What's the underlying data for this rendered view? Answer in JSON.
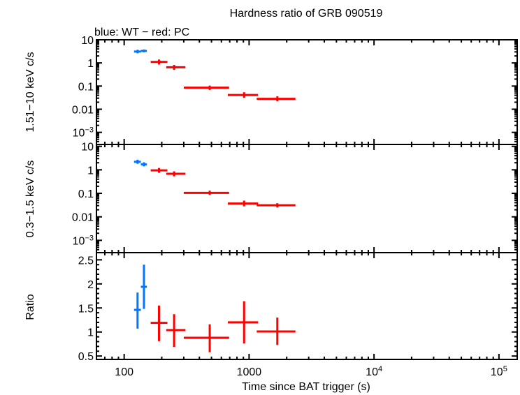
{
  "chart_data": [
    {
      "type": "scatter",
      "title": "Hardness ratio of GRB 090519",
      "subtitle": "blue: WT − red: PC",
      "ylabel": "1.51−10 keV c/s",
      "xlabel": "Time since BAT trigger (s)",
      "xscale": "log",
      "yscale": "log",
      "xlim": [
        60,
        140000
      ],
      "ylim": [
        0.0003,
        10
      ],
      "yticks": [
        "10",
        "1",
        "0.1",
        "0.01",
        "10−3"
      ],
      "series": [
        {
          "color": "#0077ff",
          "points": [
            {
              "x": 128,
              "xlo": 120,
              "xhi": 136,
              "y": 3.1,
              "ylo": 2.6,
              "yhi": 3.7
            },
            {
              "x": 144,
              "xlo": 136,
              "xhi": 152,
              "y": 3.3,
              "ylo": 2.9,
              "yhi": 3.8
            }
          ]
        },
        {
          "color": "#ff0000",
          "points": [
            {
              "x": 190,
              "xlo": 163,
              "xhi": 222,
              "y": 1.1,
              "ylo": 0.85,
              "yhi": 1.4
            },
            {
              "x": 251,
              "xlo": 217,
              "xhi": 309,
              "y": 0.65,
              "ylo": 0.5,
              "yhi": 0.82
            },
            {
              "x": 484,
              "xlo": 300,
              "xhi": 692,
              "y": 0.085,
              "ylo": 0.068,
              "yhi": 0.105
            },
            {
              "x": 912,
              "xlo": 676,
              "xhi": 1180,
              "y": 0.041,
              "ylo": 0.031,
              "yhi": 0.054
            },
            {
              "x": 1683,
              "xlo": 1150,
              "xhi": 2350,
              "y": 0.028,
              "ylo": 0.022,
              "yhi": 0.036
            }
          ]
        }
      ]
    },
    {
      "type": "scatter",
      "ylabel": "0.3−1.5 keV c/s",
      "xscale": "log",
      "yscale": "log",
      "xlim": [
        60,
        140000
      ],
      "ylim": [
        0.0003,
        12
      ],
      "yticks": [
        "10",
        "1",
        "0.1",
        "0.01",
        "10−3"
      ],
      "series": [
        {
          "color": "#0077ff",
          "points": [
            {
              "x": 128,
              "xlo": 120,
              "xhi": 136,
              "y": 2.2,
              "ylo": 1.8,
              "yhi": 2.7
            },
            {
              "x": 144,
              "xlo": 136,
              "xhi": 152,
              "y": 1.7,
              "ylo": 1.4,
              "yhi": 2.1
            }
          ]
        },
        {
          "color": "#ff0000",
          "points": [
            {
              "x": 190,
              "xlo": 163,
              "xhi": 222,
              "y": 0.95,
              "ylo": 0.75,
              "yhi": 1.2
            },
            {
              "x": 251,
              "xlo": 217,
              "xhi": 309,
              "y": 0.68,
              "ylo": 0.53,
              "yhi": 0.86
            },
            {
              "x": 484,
              "xlo": 300,
              "xhi": 692,
              "y": 0.105,
              "ylo": 0.085,
              "yhi": 0.13
            },
            {
              "x": 912,
              "xlo": 676,
              "xhi": 1180,
              "y": 0.037,
              "ylo": 0.028,
              "yhi": 0.049
            },
            {
              "x": 1683,
              "xlo": 1150,
              "xhi": 2350,
              "y": 0.031,
              "ylo": 0.025,
              "yhi": 0.038
            }
          ]
        }
      ]
    },
    {
      "type": "scatter",
      "ylabel": "Ratio",
      "xlabel": "Time since BAT trigger (s)",
      "xscale": "log",
      "yscale": "linear",
      "xlim": [
        60,
        140000
      ],
      "ylim": [
        0.43,
        2.65
      ],
      "yticks": [
        "2.5",
        "2",
        "1.5",
        "1",
        "0.5"
      ],
      "xticks": [
        "100",
        "1000",
        "10⁴",
        "10⁵"
      ],
      "series": [
        {
          "color": "#0077ff",
          "points": [
            {
              "x": 128,
              "xlo": 120,
              "xhi": 136,
              "y": 1.46,
              "ylo": 1.07,
              "yhi": 1.82
            },
            {
              "x": 144,
              "xlo": 136,
              "xhi": 152,
              "y": 1.94,
              "ylo": 1.48,
              "yhi": 2.4
            }
          ]
        },
        {
          "color": "#ff0000",
          "points": [
            {
              "x": 190,
              "xlo": 163,
              "xhi": 222,
              "y": 1.19,
              "ylo": 0.81,
              "yhi": 1.55
            },
            {
              "x": 251,
              "xlo": 217,
              "xhi": 309,
              "y": 1.04,
              "ylo": 0.69,
              "yhi": 1.37
            },
            {
              "x": 484,
              "xlo": 300,
              "xhi": 692,
              "y": 0.88,
              "ylo": 0.58,
              "yhi": 1.16
            },
            {
              "x": 912,
              "xlo": 676,
              "xhi": 1180,
              "y": 1.2,
              "ylo": 0.76,
              "yhi": 1.64
            },
            {
              "x": 1683,
              "xlo": 1150,
              "xhi": 2350,
              "y": 1.01,
              "ylo": 0.73,
              "yhi": 1.3
            }
          ]
        }
      ]
    }
  ]
}
